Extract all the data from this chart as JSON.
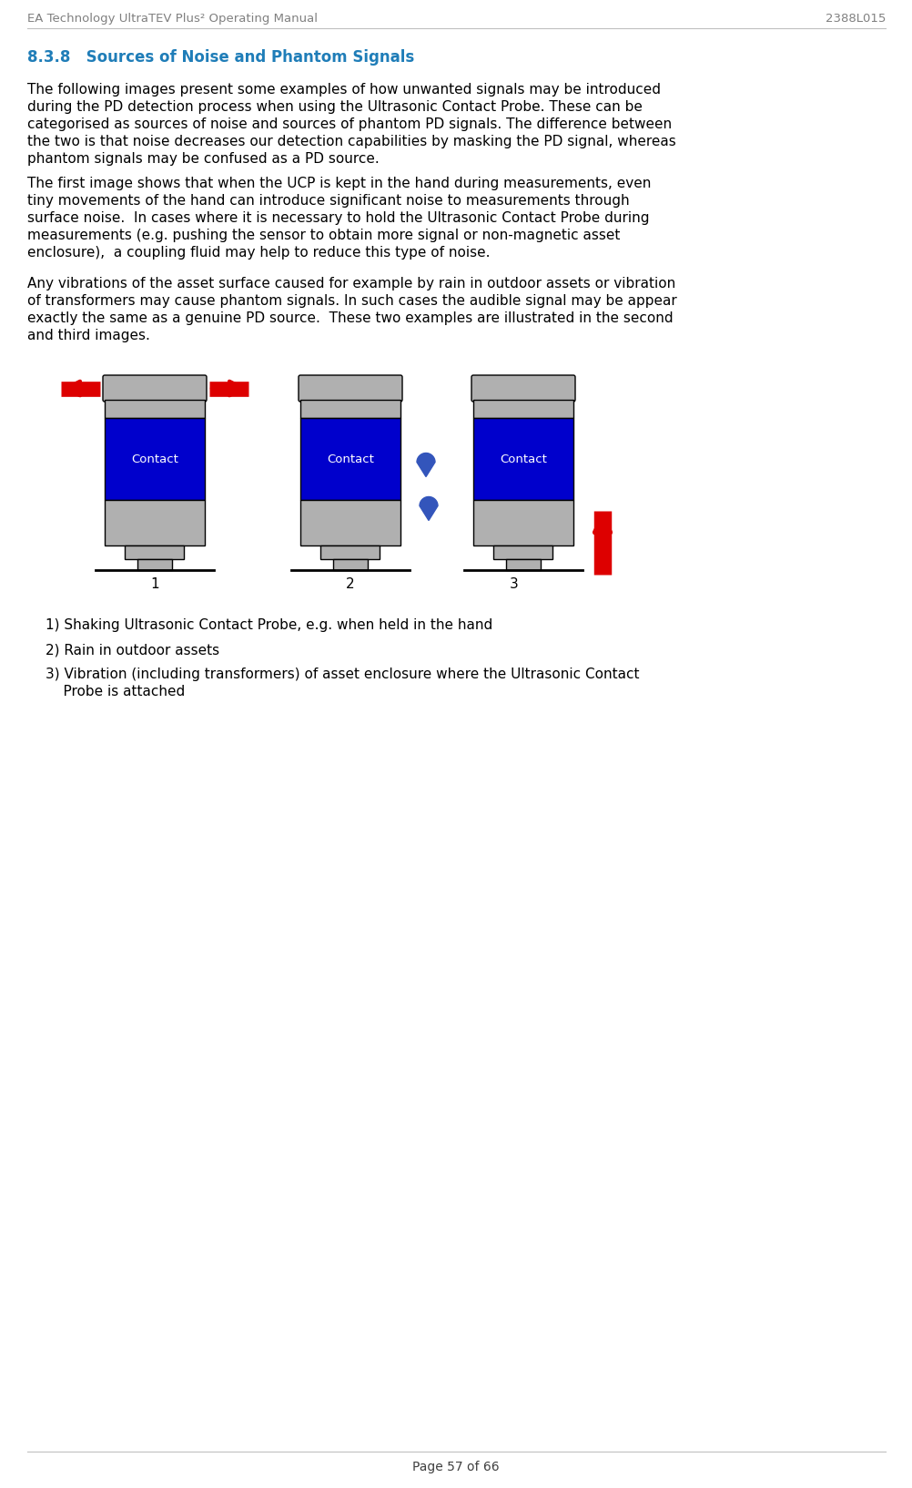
{
  "header_left": "EA Technology UltraTEV Plus² Operating Manual",
  "header_right": "2388L015",
  "section_title": "8.3.8   Sources of Noise and Phantom Signals",
  "section_title_color": "#1F7DB8",
  "para1": "The following images present some examples of how unwanted signals may be introduced\nduring the PD detection process when using the Ultrasonic Contact Probe. These can be\ncategorised as sources of noise and sources of phantom PD signals. The difference between\nthe two is that noise decreases our detection capabilities by masking the PD signal, whereas\nphantom signals may be confused as a PD source.",
  "para2": "The first image shows that when the UCP is kept in the hand during measurements, even\ntiny movements of the hand can introduce significant noise to measurements through\nsurface noise.  In cases where it is necessary to hold the Ultrasonic Contact Probe during\nmeasurements (e.g. pushing the sensor to obtain more signal or non-magnetic asset\nenclosure),  a coupling fluid may help to reduce this type of noise.",
  "para3": "Any vibrations of the asset surface caused for example by rain in outdoor assets or vibration\nof transformers may cause phantom signals. In such cases the audible signal may be appear\nexactly the same as a genuine PD source.  These two examples are illustrated in the second\nand third images.",
  "list_item1": "1) Shaking Ultrasonic Contact Probe, e.g. when held in the hand",
  "list_item2": "2) Rain in outdoor assets",
  "list_item3a": "3) Vibration (including transformers) of asset enclosure where the Ultrasonic Contact",
  "list_item3b": "    Probe is attached",
  "footer": "Page 57 of 66",
  "gray_color": "#B0B0B0",
  "blue_color": "#0000CC",
  "red_color": "#DD0000",
  "black": "#000000",
  "white": "#FFFFFF",
  "body_font_size": 11,
  "header_font_size": 9.5,
  "section_font_size": 12
}
